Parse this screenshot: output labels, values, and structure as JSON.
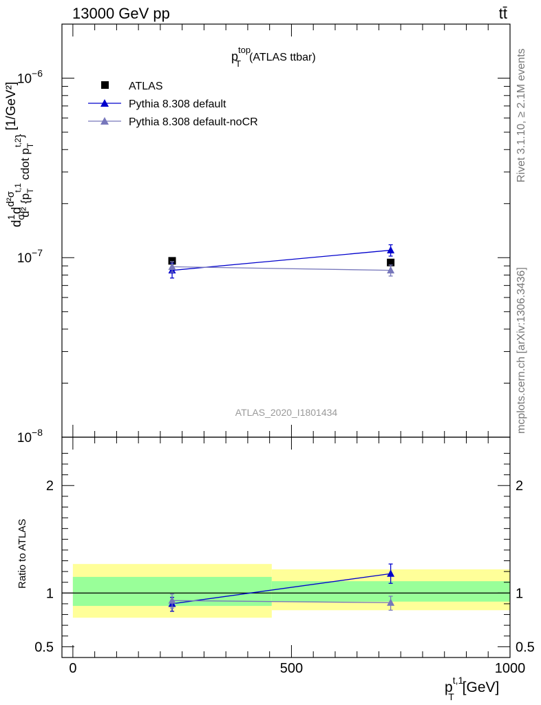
{
  "header": {
    "energy_label": "13000 GeV pp",
    "process_label": "tt̄"
  },
  "side_labels": {
    "rivet": "Rivet 3.1.10, ≥ 2.1M events",
    "source": "mcplots.cern.ch [arXiv:1306.3436]"
  },
  "chart_data": [
    {
      "type": "line",
      "panel": "main",
      "title_base": "p",
      "title_sub": "T",
      "title_sup": "top",
      "title_rest": "(ATLAS ttbar)",
      "watermark": "ATLAS_2020_I1801434",
      "yscale": "log",
      "ylim": [
        1e-08,
        2e-06
      ],
      "xlim": [
        -25,
        1000
      ],
      "yticks": [
        {
          "value": 1e-08,
          "label": "10",
          "exp": "−8"
        },
        {
          "value": 1e-07,
          "label": "10",
          "exp": "−7"
        },
        {
          "value": 1e-06,
          "label": "10",
          "exp": "−6"
        }
      ],
      "ylabel_parts": [
        "d",
        "1",
        "σ",
        "d",
        "d²σ",
        "d² {p",
        "T",
        "t,1",
        " cdot p",
        "T",
        "t,2",
        "}",
        " [1/GeV²]"
      ],
      "legend": {
        "placement": "top-left",
        "entries": [
          "ATLAS",
          "Pythia 8.308 default",
          "Pythia 8.308 default-noCR"
        ]
      },
      "series": [
        {
          "name": "ATLAS",
          "marker": "square",
          "color": "#000000",
          "x": [
            227,
            727
          ],
          "y": [
            9.6e-08,
            9.4e-08
          ]
        },
        {
          "name": "Pythia 8.308 default",
          "marker": "triangle",
          "color": "#0000cc",
          "x": [
            227,
            727
          ],
          "y": [
            8.5e-08,
            1.1e-07
          ],
          "err_low": [
            7.7e-08,
            1.02e-07
          ],
          "err_high": [
            9.3e-08,
            1.18e-07
          ]
        },
        {
          "name": "Pythia 8.308 default-noCR",
          "marker": "triangle",
          "color": "#7777bb",
          "x": [
            227,
            727
          ],
          "y": [
            8.9e-08,
            8.5e-08
          ],
          "err_low": [
            8.3e-08,
            7.9e-08
          ],
          "err_high": [
            9.5e-08,
            9.1e-08
          ]
        }
      ]
    },
    {
      "type": "line",
      "panel": "ratio",
      "ylabel": "Ratio to ATLAS",
      "xlabel_base": "p",
      "xlabel_sub": "T",
      "xlabel_sup": "t,1",
      "xlabel_rest": " [GeV]",
      "xlim": [
        -25,
        1000
      ],
      "ylim": [
        0.4,
        2.45
      ],
      "xticks": [
        0,
        500,
        1000
      ],
      "yticks": [
        {
          "value": 0.5,
          "label": "0.5"
        },
        {
          "value": 1,
          "label": "1"
        },
        {
          "value": 2,
          "label": "2"
        }
      ],
      "bands": [
        {
          "x0": 0,
          "x1": 455,
          "yellow": [
            0.77,
            1.27
          ],
          "green": [
            0.88,
            1.15
          ]
        },
        {
          "x0": 455,
          "x1": 1000,
          "yellow": [
            0.84,
            1.22
          ],
          "green": [
            0.92,
            1.11
          ]
        }
      ],
      "series": [
        {
          "name": "Pythia 8.308 default",
          "color": "#0000cc",
          "x": [
            227,
            727
          ],
          "y": [
            0.9,
            1.18
          ],
          "err_low": [
            0.83,
            1.09
          ],
          "err_high": [
            0.96,
            1.27
          ]
        },
        {
          "name": "Pythia 8.308 default-noCR",
          "color": "#7777bb",
          "x": [
            227,
            727
          ],
          "y": [
            0.93,
            0.91
          ],
          "err_low": [
            0.86,
            0.84
          ],
          "err_high": [
            0.99,
            0.97
          ]
        }
      ]
    }
  ]
}
